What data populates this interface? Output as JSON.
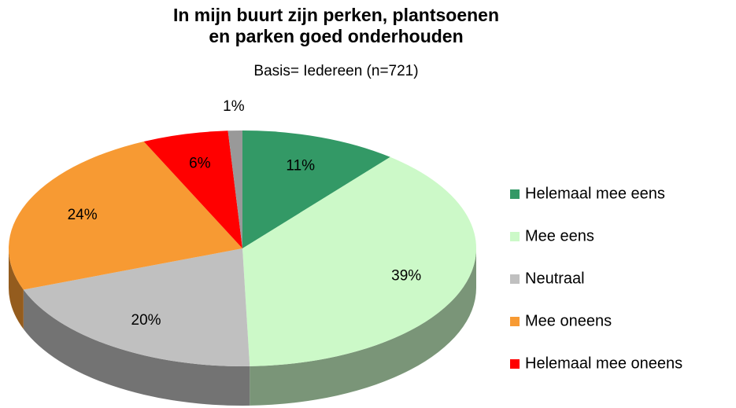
{
  "chart_data": {
    "type": "pie",
    "title": "In mijn buurt zijn perken, plantsoenen\nen parken goed onderhouden",
    "subtitle": "Basis= Iedereen (n=721)",
    "categories": [
      "Helemaal mee eens",
      "Mee eens",
      "Neutraal",
      "Mee oneens",
      "Helemaal mee oneens",
      null
    ],
    "values": [
      11,
      39,
      20,
      24,
      6,
      1
    ],
    "value_labels": [
      "11%",
      "39%",
      "20%",
      "24%",
      "6%",
      "1%"
    ],
    "colors": [
      "#339966",
      "#ccf9c8",
      "#c0c0c0",
      "#f79a33",
      "#ff0000",
      "#999999"
    ],
    "legend": "right"
  }
}
